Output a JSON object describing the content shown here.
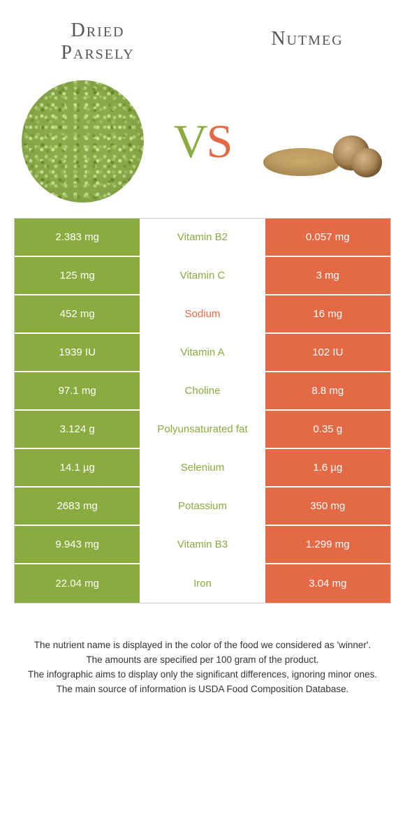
{
  "colors": {
    "green": "#8aab3f",
    "orange": "#e46a45",
    "white": "#ffffff",
    "text_dark": "#555555"
  },
  "header": {
    "left_line1": "Dried",
    "left_line2": "Parsely",
    "right": "Nutmeg"
  },
  "vs": {
    "v": "V",
    "s": "S"
  },
  "rows": [
    {
      "left": "2.383 mg",
      "mid": "Vitamin B2",
      "right": "0.057 mg",
      "winner": "left"
    },
    {
      "left": "125 mg",
      "mid": "Vitamin C",
      "right": "3 mg",
      "winner": "left"
    },
    {
      "left": "452 mg",
      "mid": "Sodium",
      "right": "16 mg",
      "winner": "right"
    },
    {
      "left": "1939 IU",
      "mid": "Vitamin A",
      "right": "102 IU",
      "winner": "left"
    },
    {
      "left": "97.1 mg",
      "mid": "Choline",
      "right": "8.8 mg",
      "winner": "left"
    },
    {
      "left": "3.124 g",
      "mid": "Polyunsaturated fat",
      "right": "0.35 g",
      "winner": "left"
    },
    {
      "left": "14.1 µg",
      "mid": "Selenium",
      "right": "1.6 µg",
      "winner": "left"
    },
    {
      "left": "2683 mg",
      "mid": "Potassium",
      "right": "350 mg",
      "winner": "left"
    },
    {
      "left": "9.943 mg",
      "mid": "Vitamin B3",
      "right": "1.299 mg",
      "winner": "left"
    },
    {
      "left": "22.04 mg",
      "mid": "Iron",
      "right": "3.04 mg",
      "winner": "left"
    }
  ],
  "footer": {
    "line1": "The nutrient name is displayed in the color of the food we considered as 'winner'.",
    "line2": "The amounts are specified per 100 gram of the product.",
    "line3": "The infographic aims to display only the significant differences, ignoring minor ones.",
    "line4": "The main source of information is USDA Food Composition Database."
  }
}
